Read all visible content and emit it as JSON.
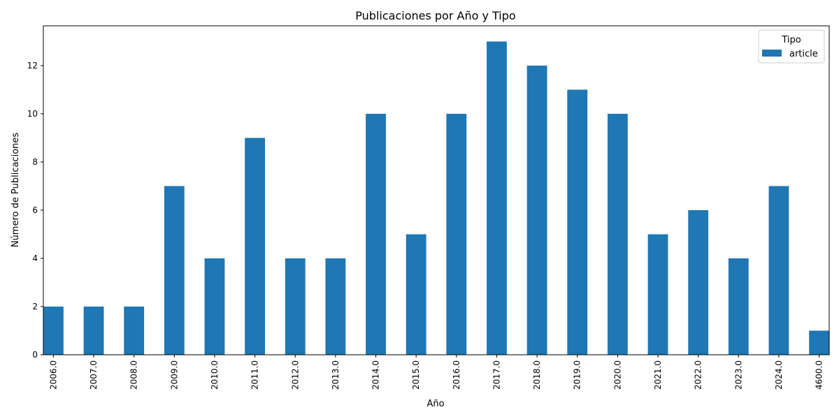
{
  "chart_data": {
    "type": "bar",
    "title": "Publicaciones por Año y Tipo",
    "xlabel": "Año",
    "ylabel": "Número de Publicaciones",
    "categories": [
      "2006.0",
      "2007.0",
      "2008.0",
      "2009.0",
      "2010.0",
      "2011.0",
      "2012.0",
      "2013.0",
      "2014.0",
      "2015.0",
      "2016.0",
      "2017.0",
      "2018.0",
      "2019.0",
      "2020.0",
      "2021.0",
      "2022.0",
      "2023.0",
      "2024.0",
      "4600.0"
    ],
    "series": [
      {
        "name": "article",
        "color": "#1f77b4",
        "values": [
          2,
          2,
          2,
          7,
          4,
          9,
          4,
          4,
          10,
          5,
          10,
          13,
          12,
          11,
          10,
          5,
          6,
          4,
          7,
          1
        ]
      }
    ],
    "yticks": [
      0,
      2,
      4,
      6,
      8,
      10,
      12
    ],
    "ylim": [
      0,
      13.65
    ],
    "grid": false,
    "legend": {
      "title": "Tipo",
      "placement": "top-right"
    }
  }
}
